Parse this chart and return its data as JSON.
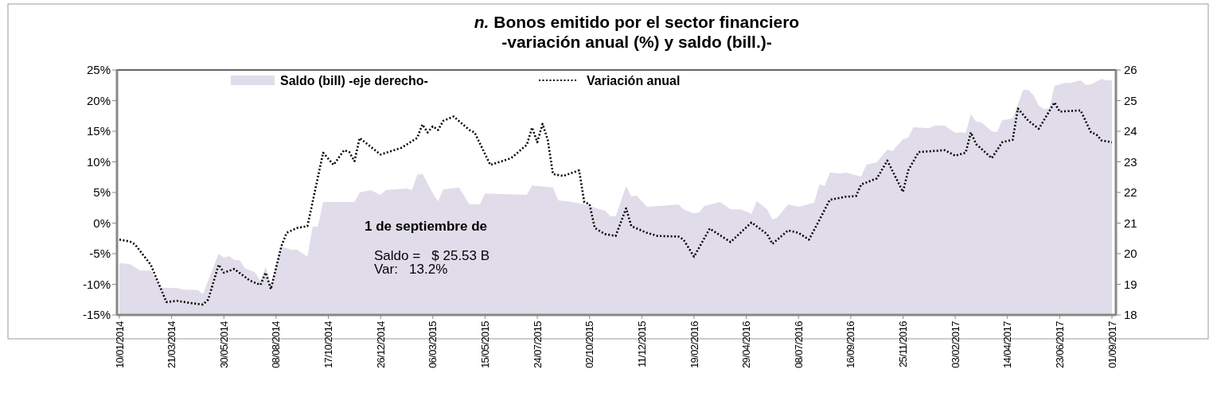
{
  "chart_data": {
    "type": "line",
    "title": "n. Bonos emitido por el sector financiero",
    "subtitle": "-variación anual (%) y saldo (bill.)-",
    "xlim": [
      "2014-01-10",
      "2017-09-01"
    ],
    "xticks": [
      {
        "value": "2014-01-10",
        "label": "10/01/2014"
      },
      {
        "value": "2014-03-21",
        "label": "21/03/2014"
      },
      {
        "value": "2014-05-30",
        "label": "30/05/2014"
      },
      {
        "value": "2014-08-08",
        "label": "08/08/2014"
      },
      {
        "value": "2014-10-17",
        "label": "17/10/2014"
      },
      {
        "value": "2014-12-26",
        "label": "26/12/2014"
      },
      {
        "value": "2015-03-06",
        "label": "06/03/2015"
      },
      {
        "value": "2015-05-15",
        "label": "15/05/2015"
      },
      {
        "value": "2015-07-24",
        "label": "24/07/2015"
      },
      {
        "value": "2015-10-02",
        "label": "02/10/2015"
      },
      {
        "value": "2015-12-11",
        "label": "11/12/2015"
      },
      {
        "value": "2016-02-19",
        "label": "19/02/2016"
      },
      {
        "value": "2016-04-29",
        "label": "29/04/2016"
      },
      {
        "value": "2016-07-08",
        "label": "08/07/2016"
      },
      {
        "value": "2016-09-16",
        "label": "16/09/2016"
      },
      {
        "value": "2016-11-25",
        "label": "25/11/2016"
      },
      {
        "value": "2017-02-03",
        "label": "03/02/2017"
      },
      {
        "value": "2017-04-14",
        "label": "14/04/2017"
      },
      {
        "value": "2017-06-23",
        "label": "23/06/2017"
      },
      {
        "value": "2017-09-01",
        "label": "01/09/2017"
      }
    ],
    "ylim": [
      -15,
      25
    ],
    "yticks": [
      {
        "value": -15,
        "label": "-15%"
      },
      {
        "value": -10,
        "label": "-10%"
      },
      {
        "value": -5,
        "label": "-5%"
      },
      {
        "value": 0,
        "label": "0%"
      },
      {
        "value": 5,
        "label": "5%"
      },
      {
        "value": 10,
        "label": "10%"
      },
      {
        "value": 15,
        "label": "15%"
      },
      {
        "value": 20,
        "label": "20%"
      },
      {
        "value": 25,
        "label": "25%"
      }
    ],
    "y2lim": [
      18,
      26
    ],
    "y2ticks": [
      18,
      19,
      20,
      21,
      22,
      23,
      24,
      25,
      26
    ],
    "grid": false,
    "legend": "top",
    "marker": "none",
    "annotations": [
      "1 de septiembre de",
      "Saldo =   $ 25.53 B",
      "Var:   13.2%"
    ],
    "series": [
      {
        "name": "Saldo (bill) -eje derecho-",
        "type": "area",
        "axis": "y2",
        "color": "#e0dcea",
        "x": [
          "2014-01-10",
          "2014-01-24",
          "2014-02-07",
          "2014-02-21",
          "2014-03-07",
          "2014-03-28",
          "2014-04-04",
          "2014-04-25",
          "2014-05-02",
          "2014-05-23",
          "2014-05-30",
          "2014-06-06",
          "2014-06-13",
          "2014-06-20",
          "2014-06-27",
          "2014-07-11",
          "2014-07-18",
          "2014-07-25",
          "2014-08-01",
          "2014-08-15",
          "2014-08-29",
          "2014-09-05",
          "2014-09-19",
          "2014-09-26",
          "2014-10-03",
          "2014-10-10",
          "2014-11-21",
          "2014-11-28",
          "2014-12-05",
          "2014-12-12",
          "2014-12-26",
          "2015-01-02",
          "2015-01-30",
          "2015-02-06",
          "2015-02-13",
          "2015-02-20",
          "2015-03-06",
          "2015-03-13",
          "2015-03-20",
          "2015-04-10",
          "2015-04-24",
          "2015-05-08",
          "2015-05-15",
          "2015-07-10",
          "2015-07-17",
          "2015-08-14",
          "2015-08-21",
          "2015-09-04",
          "2015-09-25",
          "2015-10-16",
          "2015-10-23",
          "2015-10-30",
          "2015-11-06",
          "2015-11-20",
          "2015-11-27",
          "2015-12-04",
          "2015-12-18",
          "2016-01-15",
          "2016-01-29",
          "2016-02-05",
          "2016-02-19",
          "2016-02-26",
          "2016-03-04",
          "2016-03-25",
          "2016-04-08",
          "2016-04-22",
          "2016-05-06",
          "2016-05-13",
          "2016-05-27",
          "2016-06-03",
          "2016-06-10",
          "2016-06-24",
          "2016-07-08",
          "2016-07-29",
          "2016-08-05",
          "2016-08-12",
          "2016-08-19",
          "2016-09-02",
          "2016-09-09",
          "2016-09-30",
          "2016-10-07",
          "2016-10-21",
          "2016-11-04",
          "2016-11-11",
          "2016-11-25",
          "2016-12-02",
          "2016-12-09",
          "2016-12-30",
          "2017-01-06",
          "2017-01-20",
          "2017-02-03",
          "2017-02-10",
          "2017-02-17",
          "2017-02-24",
          "2017-03-03",
          "2017-03-10",
          "2017-03-24",
          "2017-03-31",
          "2017-04-07",
          "2017-04-21",
          "2017-05-05",
          "2017-05-12",
          "2017-05-19",
          "2017-05-26",
          "2017-06-02",
          "2017-06-09",
          "2017-06-16",
          "2017-06-30",
          "2017-07-07",
          "2017-07-21",
          "2017-07-28",
          "2017-08-04",
          "2017-08-18",
          "2017-08-25",
          "2017-09-01"
        ],
        "values": [
          19.69,
          19.66,
          19.45,
          19.45,
          18.88,
          18.88,
          18.83,
          18.81,
          18.68,
          20.0,
          19.87,
          19.92,
          19.79,
          19.79,
          19.53,
          19.38,
          19.12,
          19.58,
          19.01,
          20.23,
          20.13,
          20.13,
          19.9,
          20.88,
          20.88,
          21.69,
          21.69,
          22.0,
          22.03,
          22.08,
          21.92,
          22.08,
          22.13,
          22.08,
          22.57,
          22.62,
          21.97,
          21.71,
          22.1,
          22.16,
          21.61,
          21.61,
          21.97,
          21.92,
          22.23,
          22.16,
          21.74,
          21.71,
          21.61,
          21.45,
          21.4,
          21.22,
          21.22,
          22.21,
          21.87,
          21.9,
          21.53,
          21.58,
          21.61,
          21.45,
          21.32,
          21.35,
          21.56,
          21.69,
          21.45,
          21.45,
          21.3,
          21.71,
          21.45,
          21.12,
          21.19,
          21.61,
          21.53,
          21.66,
          22.26,
          22.21,
          22.65,
          22.62,
          22.65,
          22.52,
          22.91,
          22.99,
          23.4,
          23.35,
          23.74,
          23.79,
          24.13,
          24.1,
          24.18,
          24.18,
          23.95,
          23.97,
          23.95,
          24.55,
          24.31,
          24.29,
          24.0,
          23.97,
          24.36,
          24.42,
          25.35,
          25.35,
          25.17,
          24.83,
          24.73,
          24.75,
          25.48,
          25.58,
          25.58,
          25.66,
          25.51,
          25.53,
          25.71,
          25.66,
          25.66
        ]
      },
      {
        "name": "Variación anual",
        "line_style": "dotted",
        "color": "#000000",
        "x": [
          "2014-01-10",
          "2014-01-24",
          "2014-01-31",
          "2014-02-21",
          "2014-03-14",
          "2014-03-28",
          "2014-04-18",
          "2014-05-02",
          "2014-05-09",
          "2014-05-23",
          "2014-05-30",
          "2014-06-13",
          "2014-07-04",
          "2014-07-18",
          "2014-07-25",
          "2014-08-01",
          "2014-08-15",
          "2014-08-22",
          "2014-09-05",
          "2014-09-19",
          "2014-10-10",
          "2014-10-24",
          "2014-11-07",
          "2014-11-14",
          "2014-11-21",
          "2014-11-28",
          "2014-12-05",
          "2014-12-26",
          "2015-01-23",
          "2015-02-13",
          "2015-02-20",
          "2015-02-27",
          "2015-03-06",
          "2015-03-13",
          "2015-03-20",
          "2015-04-03",
          "2015-04-24",
          "2015-05-01",
          "2015-05-22",
          "2015-06-19",
          "2015-07-10",
          "2015-07-17",
          "2015-07-24",
          "2015-07-31",
          "2015-08-07",
          "2015-08-14",
          "2015-08-28",
          "2015-09-18",
          "2015-09-25",
          "2015-10-02",
          "2015-10-09",
          "2015-10-23",
          "2015-11-06",
          "2015-11-20",
          "2015-11-27",
          "2015-12-18",
          "2016-01-01",
          "2016-01-29",
          "2016-02-05",
          "2016-02-19",
          "2016-03-11",
          "2016-04-08",
          "2016-05-06",
          "2016-05-27",
          "2016-06-03",
          "2016-06-24",
          "2016-07-08",
          "2016-07-22",
          "2016-08-05",
          "2016-08-19",
          "2016-09-09",
          "2016-09-23",
          "2016-09-30",
          "2016-10-21",
          "2016-11-04",
          "2016-11-25",
          "2016-12-02",
          "2016-12-16",
          "2017-01-20",
          "2017-02-03",
          "2017-02-17",
          "2017-02-24",
          "2017-03-03",
          "2017-03-24",
          "2017-04-07",
          "2017-04-21",
          "2017-04-28",
          "2017-05-12",
          "2017-05-26",
          "2017-06-16",
          "2017-06-23",
          "2017-07-21",
          "2017-08-04",
          "2017-08-11",
          "2017-08-18",
          "2017-09-01"
        ],
        "values": [
          -2.7,
          -3.0,
          -3.5,
          -6.8,
          -12.9,
          -12.7,
          -13.1,
          -13.3,
          -12.5,
          -6.8,
          -8.1,
          -7.5,
          -9.4,
          -10.1,
          -8.1,
          -10.8,
          -3.8,
          -1.6,
          -0.8,
          -0.5,
          11.5,
          9.5,
          11.9,
          11.6,
          10.1,
          13.9,
          13.2,
          11.2,
          12.3,
          13.9,
          16.1,
          14.8,
          15.8,
          15.2,
          16.7,
          17.4,
          15.2,
          14.8,
          9.5,
          10.6,
          12.8,
          15.6,
          13.2,
          16.2,
          13.6,
          8.0,
          7.7,
          8.6,
          3.4,
          3.1,
          -0.8,
          -1.8,
          -2.1,
          2.4,
          -0.5,
          -1.6,
          -2.1,
          -2.2,
          -2.7,
          -5.5,
          -0.9,
          -3.1,
          0.1,
          -1.8,
          -3.4,
          -1.2,
          -1.6,
          -2.7,
          0.5,
          3.8,
          4.3,
          4.4,
          6.3,
          7.3,
          10.2,
          5.1,
          8.6,
          11.6,
          11.9,
          11.0,
          11.5,
          14.8,
          12.9,
          10.6,
          13.2,
          13.6,
          18.7,
          16.7,
          15.4,
          19.7,
          18.2,
          18.4,
          14.8,
          14.5,
          13.5,
          13.2
        ]
      }
    ]
  }
}
